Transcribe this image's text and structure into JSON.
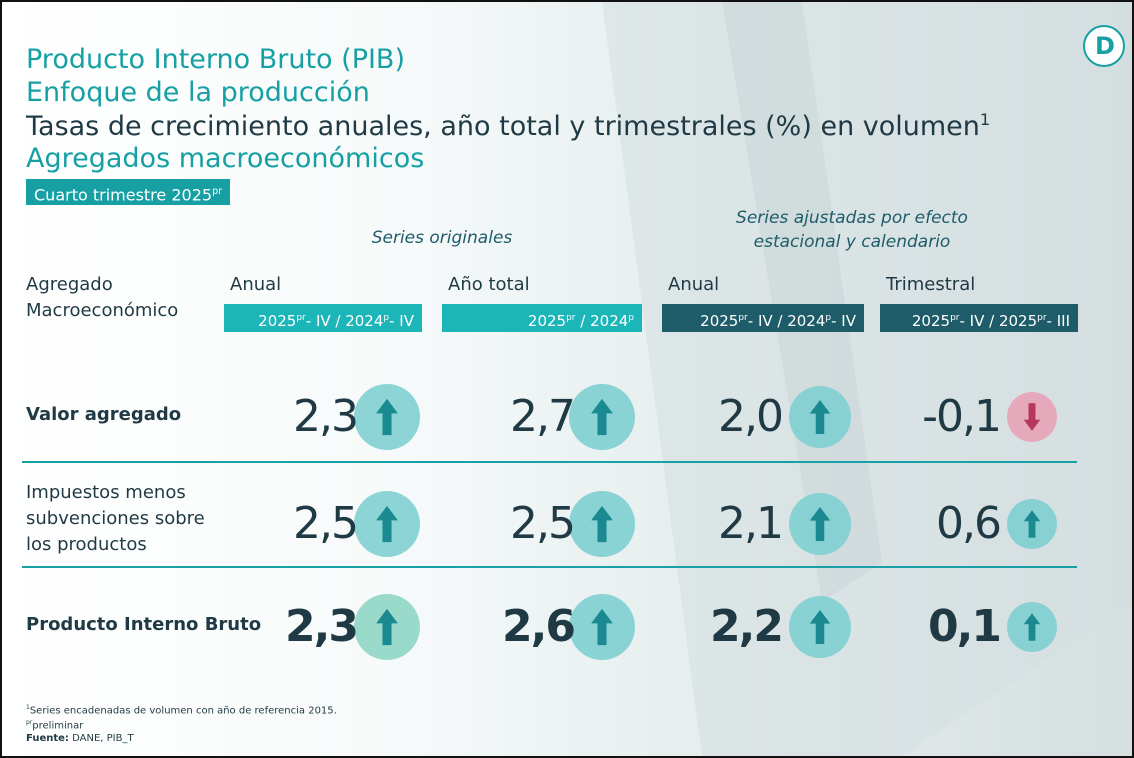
{
  "logo": "D",
  "header": {
    "title": "Producto Interno Bruto (PIB)",
    "subtitle": "Enfoque de la producción",
    "description": [
      "Tasas de crecimiento anuales, año total y trimestrales (%) en volumen",
      "1"
    ],
    "section": "Agregados macroeconómicos",
    "period": [
      "Cuarto trimestre 2025",
      "pr"
    ]
  },
  "groups": {
    "original": [
      "Series originales"
    ],
    "adjusted": [
      "Series ajustadas por efecto",
      "estacional y calendario"
    ]
  },
  "table": {
    "row_header": [
      "Agregado",
      "Macroeconómico"
    ],
    "columns": [
      {
        "label": "Anual",
        "period": [
          "2025",
          "pr",
          "- IV / 2024",
          "p",
          "- IV"
        ]
      },
      {
        "label": "Año total",
        "period": [
          "2025",
          "pr",
          " / 2024",
          "p"
        ]
      },
      {
        "label": "Anual",
        "period": [
          "2025",
          "pr",
          "- IV / 2024",
          "p",
          "- IV"
        ]
      },
      {
        "label": "Trimestral",
        "period": [
          "2025",
          "pr",
          "- IV / 2025",
          "pr",
          "- III"
        ]
      }
    ],
    "rows": [
      {
        "label": [
          "Valor agregado"
        ],
        "values": [
          "2,3",
          "2,7",
          "2,0",
          "-0,1"
        ]
      },
      {
        "label": [
          "Impuestos menos",
          "subvenciones sobre",
          "los productos"
        ],
        "values": [
          "2,5",
          "2,5",
          "2,1",
          "0,6"
        ]
      },
      {
        "label": [
          "Producto Interno Bruto"
        ],
        "values": [
          "2,3",
          "2,6",
          "2,2",
          "0,1"
        ]
      }
    ]
  },
  "footnotes": {
    "note1": [
      "1",
      "Series encadenadas de volumen con año de referencia 2015."
    ],
    "note2": [
      "pr",
      "preliminar"
    ],
    "source": [
      "Fuente:",
      " DANE, PIB_T"
    ]
  }
}
